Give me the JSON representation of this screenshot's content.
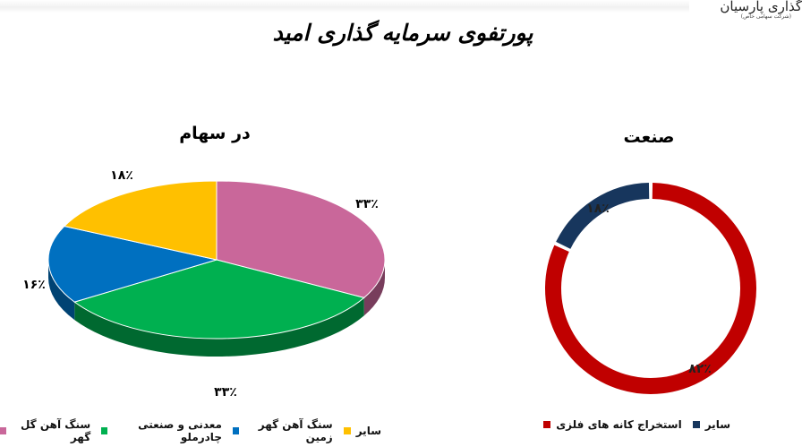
{
  "header": {
    "title": "پورتفوی سرمایه گذاری امید",
    "logo_text": "گذاری پارسیان",
    "logo_subtext": "(شرکت سهامی خاص)"
  },
  "chart_data": [
    {
      "type": "pie",
      "title": "در سهام",
      "three_d": true,
      "legend": "bottom",
      "categories": [
        "سنگ آهن گل گهر",
        "معدنی و صنعتی چادرملو",
        "سنگ آهن گهر زمین",
        "سایر"
      ],
      "values": [
        33,
        33,
        16,
        18
      ],
      "labels": [
        "۳۳٪",
        "۳۳٪",
        "۱۶٪",
        "۱۸٪"
      ],
      "colors": [
        "#c9679a",
        "#00b050",
        "#0070c0",
        "#ffc000"
      ]
    },
    {
      "type": "pie",
      "subtype": "donut",
      "title": "صنعت",
      "legend": "bottom",
      "categories": [
        "استخراج کانه های فلزی",
        "سایر"
      ],
      "values": [
        82,
        18
      ],
      "labels": [
        "۸۲٪",
        "۱۸٪"
      ],
      "colors": [
        "#c00000",
        "#17365d"
      ]
    }
  ]
}
